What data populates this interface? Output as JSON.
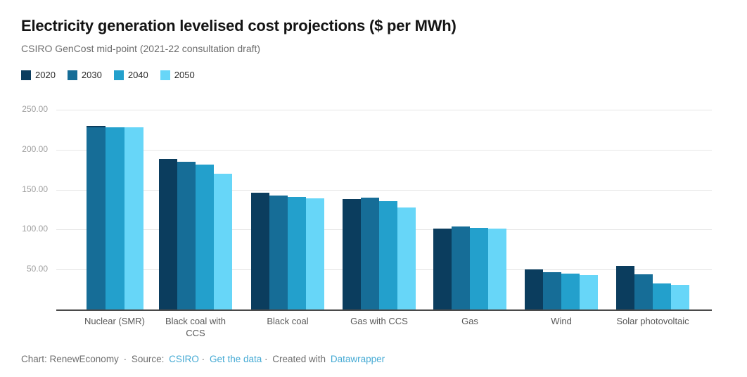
{
  "header": {
    "title": "Electricity generation levelised cost projections ($ per MWh)",
    "subtitle": "CSIRO GenCost mid-point (2021-22 consultation draft)"
  },
  "footer": {
    "credit": "Chart: RenewEconomy",
    "separator": "·",
    "source_label": "Source:",
    "source_link": "CSIRO",
    "data_link": "Get the data",
    "created_label": "Created with",
    "created_link": "Datawrapper"
  },
  "colors": {
    "link_blue": "#45aad4",
    "axis_line": "#4a4a4a",
    "gridline": "#e6e6e6",
    "tick_text": "#9e9e9e",
    "category_text": "#585858"
  },
  "chart_data": {
    "type": "bar",
    "title": "Electricity generation levelised cost projections ($ per MWh)",
    "subtitle": "CSIRO GenCost mid-point (2021-22 consultation draft)",
    "xlabel": "",
    "ylabel": "$ per MWh",
    "ylim": [
      0,
      250
    ],
    "grid": true,
    "legend_position": "top",
    "ytick_labels": [
      "250.00",
      "200.00",
      "150.00",
      "100.00",
      "50.00"
    ],
    "ytick_values": [
      250,
      200,
      150,
      100,
      50
    ],
    "categories": [
      "Nuclear (SMR)",
      "Black coal with CCS",
      "Black coal",
      "Gas with CCS",
      "Gas",
      "Wind",
      "Solar photovoltaic"
    ],
    "series": [
      {
        "name": "2020",
        "color": "#0b3d5e",
        "values": [
          230,
          188,
          146,
          138,
          101,
          50,
          55
        ]
      },
      {
        "name": "2030",
        "color": "#166d97",
        "values": [
          228,
          185,
          143,
          140,
          104,
          47,
          44
        ]
      },
      {
        "name": "2040",
        "color": "#23a0cc",
        "values": [
          228,
          181,
          141,
          136,
          102,
          45,
          33
        ]
      },
      {
        "name": "2050",
        "color": "#67d6f8",
        "values": [
          228,
          170,
          139,
          128,
          101,
          43,
          31
        ]
      }
    ],
    "layout_hints": {
      "note": "In source chart the 2020 bar of the Nuclear (SMR) group is drawn behind the 2030 bar (only its top cap is visible)",
      "merged_first_bar_group_index": 0
    }
  }
}
